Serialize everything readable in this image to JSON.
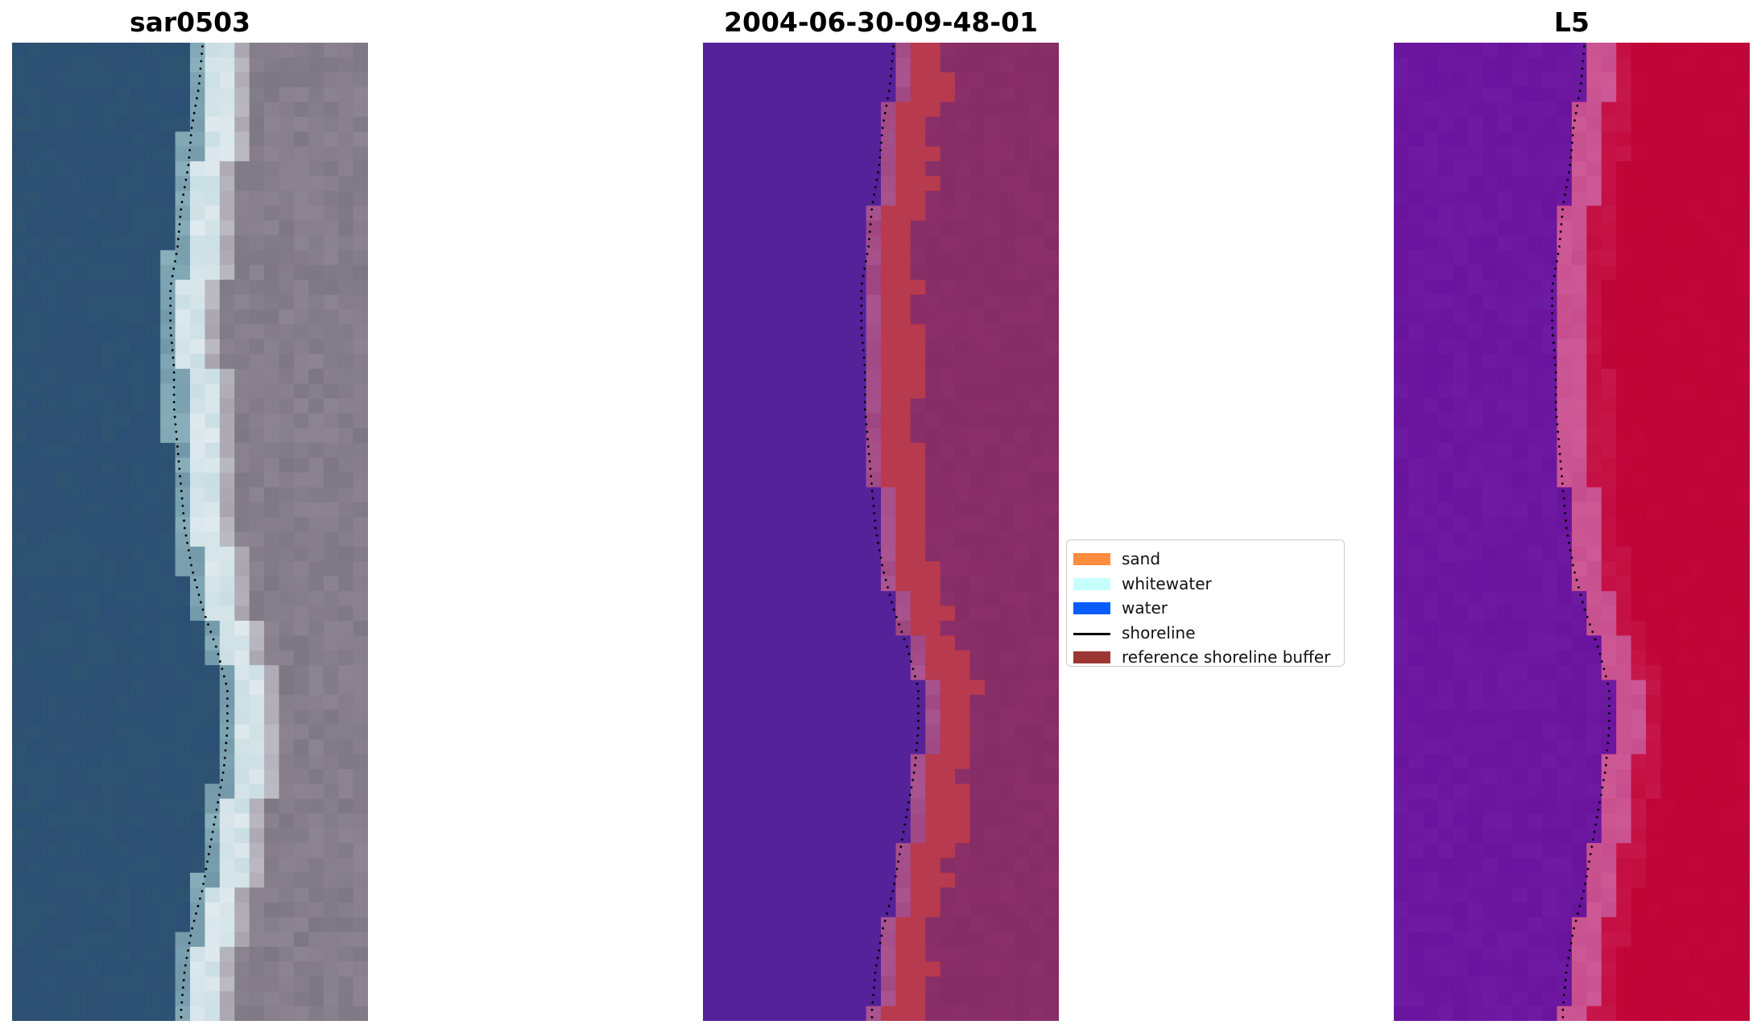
{
  "panels": [
    {
      "title": "sar0503"
    },
    {
      "title": "2004-06-30-09-48-01"
    },
    {
      "title": "L5"
    }
  ],
  "legend": {
    "items": [
      {
        "label": "sand",
        "color": "#ff8c3f",
        "kind": "patch"
      },
      {
        "label": "whitewater",
        "color": "#c7ffff",
        "kind": "patch"
      },
      {
        "label": "water",
        "color": "#0a5cff",
        "kind": "patch"
      },
      {
        "label": "shoreline",
        "color": "#000000",
        "kind": "line"
      },
      {
        "label": "reference shoreline buffer",
        "color": "#9c3634",
        "kind": "patch"
      }
    ]
  },
  "colors": {
    "water_rgb": "#2c4f73",
    "land_rgb": "#8c8490",
    "classified_water": "#55229a",
    "buffer": "#b83a4e",
    "classified_land": "#8b2f68",
    "mndwi_water": "#6a139e",
    "mndwi_land": "#c0063a"
  },
  "shoreline_profile": [
    0.56,
    0.55,
    0.53,
    0.52,
    0.5,
    0.49,
    0.47,
    0.47,
    0.48,
    0.48,
    0.49,
    0.5,
    0.51,
    0.53,
    0.56,
    0.6,
    0.63,
    0.63,
    0.62,
    0.6,
    0.58,
    0.56,
    0.53,
    0.51,
    0.5
  ]
}
